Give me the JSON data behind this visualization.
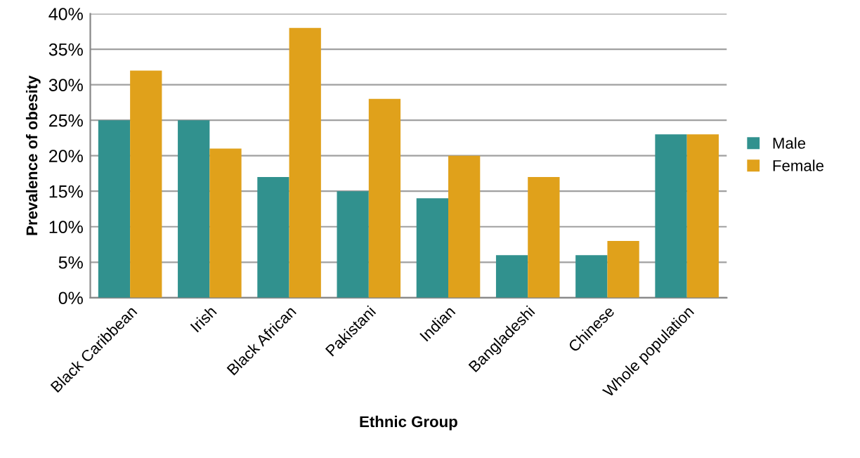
{
  "chart_data": {
    "type": "bar",
    "xlabel": "Ethnic Group",
    "ylabel": "Prevalence of obesity",
    "categories": [
      "Black Caribbean",
      "Irish",
      "Black African",
      "Pakistani",
      "Indian",
      "Bangladeshi",
      "Chinese",
      "Whole population"
    ],
    "series": [
      {
        "name": "Male",
        "color": "#31918e",
        "values": [
          25,
          25,
          17,
          15,
          14,
          6,
          6,
          23
        ]
      },
      {
        "name": "Female",
        "color": "#e0a11b",
        "values": [
          32,
          21,
          38,
          28,
          20,
          17,
          8,
          23
        ]
      }
    ],
    "ylim": [
      0,
      40
    ],
    "yticks": [
      {
        "value": 0,
        "label": "0%"
      },
      {
        "value": 5,
        "label": "5%"
      },
      {
        "value": 10,
        "label": "10%"
      },
      {
        "value": 15,
        "label": "15%"
      },
      {
        "value": 20,
        "label": "20%"
      },
      {
        "value": 25,
        "label": "25%"
      },
      {
        "value": 30,
        "label": "30%"
      },
      {
        "value": 35,
        "label": "35%"
      },
      {
        "value": 40,
        "label": "40%"
      }
    ],
    "grid": "y",
    "legend": "right"
  }
}
